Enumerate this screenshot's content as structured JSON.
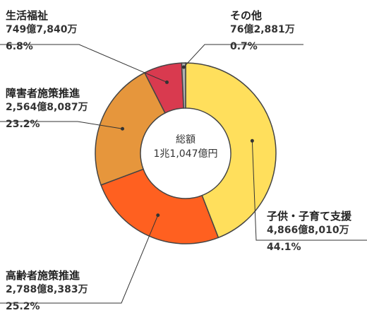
{
  "center": {
    "title": "総額",
    "total": "1兆1,047億円"
  },
  "chart_data": {
    "type": "pie",
    "donut": true,
    "categories": [
      "子供・子育て支援",
      "高齢者施策推進",
      "障害者施策推進",
      "生活福祉",
      "その他"
    ],
    "values": [
      44.1,
      25.2,
      23.2,
      6.8,
      0.7
    ],
    "amounts": [
      "4,866億8,010万",
      "2,788億8,383万",
      "2,564億8,087万",
      "749億7,840万",
      "76億2,881万"
    ],
    "percent_labels": [
      "44.1%",
      "25.2%",
      "23.2%",
      "6.8%",
      "0.7%"
    ],
    "colors": [
      "#FFDF5C",
      "#FF6020",
      "#E6963C",
      "#D93A4F",
      "#B0B0B0"
    ]
  }
}
